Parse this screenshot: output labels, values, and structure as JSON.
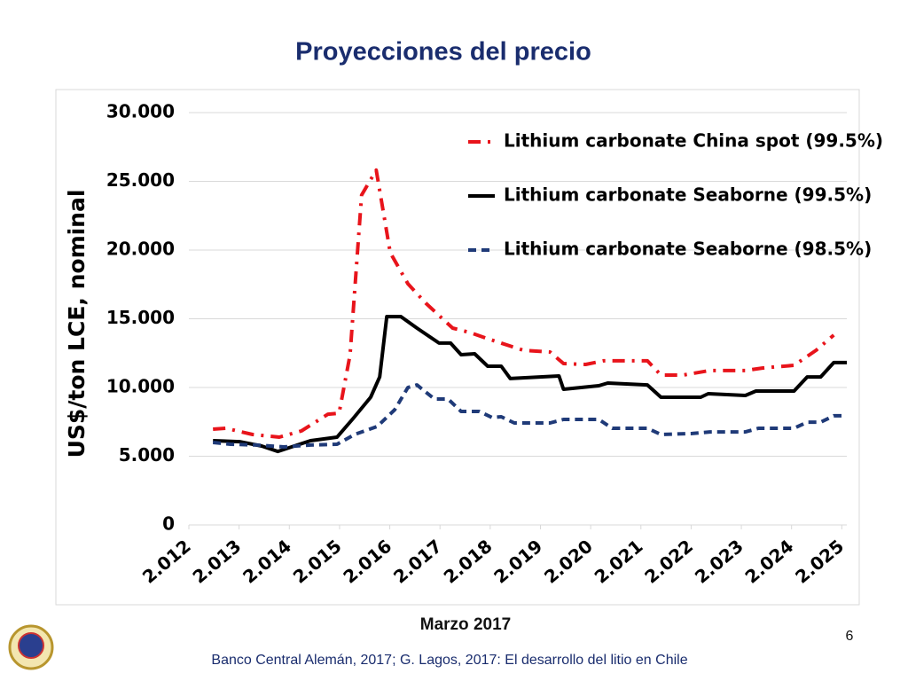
{
  "slide": {
    "title": "Proyecciones del precio",
    "date": "Marzo 2017",
    "source": "Banco Central Alemán, 2017; G. Lagos, 2017: El desarrollo del litio en Chile",
    "page": "6"
  },
  "chart_data": {
    "type": "line",
    "ylabel": "US$/ton LCE, nominal",
    "xlim": [
      2012,
      2025.1
    ],
    "xticks": [
      {
        "value": 2012,
        "label": "2.012"
      },
      {
        "value": 2013,
        "label": "2.013"
      },
      {
        "value": 2014,
        "label": "2.014"
      },
      {
        "value": 2015,
        "label": "2.015"
      },
      {
        "value": 2016,
        "label": "2.016"
      },
      {
        "value": 2017,
        "label": "2.017"
      },
      {
        "value": 2018,
        "label": "2.018"
      },
      {
        "value": 2019,
        "label": "2.019"
      },
      {
        "value": 2020,
        "label": "2.020"
      },
      {
        "value": 2021,
        "label": "2.021"
      },
      {
        "value": 2022,
        "label": "2.022"
      },
      {
        "value": 2023,
        "label": "2.023"
      },
      {
        "value": 2024,
        "label": "2.024"
      },
      {
        "value": 2025,
        "label": "2.025"
      }
    ],
    "ylim": [
      0,
      30000
    ],
    "yticks": [
      0,
      {
        "value": 5000,
        "label": "5.000"
      },
      {
        "value": 10000,
        "label": "10.000"
      },
      {
        "value": 15000,
        "label": "15.000"
      },
      {
        "value": 20000,
        "label": "20.000"
      },
      {
        "value": 25000,
        "label": "25.000"
      },
      {
        "value": 30000,
        "label": "30.000"
      }
    ],
    "grid": true,
    "legend": "upper right",
    "series": [
      {
        "name": "Lithium carbonate China spot (99.5%)",
        "color": "#e8141b",
        "line_style": "dashdot",
        "x": [
          2012.48,
          2012.74,
          2013.27,
          2013.8,
          2014.24,
          2014.77,
          2014.99,
          2015.21,
          2015.44,
          2015.73,
          2016.01,
          2016.36,
          2016.72,
          2017.25,
          2017.6,
          2017.95,
          2018.66,
          2019.19,
          2019.46,
          2019.9,
          2020.25,
          2021.13,
          2021.4,
          2021.84,
          2022.37,
          2023.08,
          2023.43,
          2024.05,
          2024.49,
          2024.84
        ],
        "values": [
          6970,
          7030,
          6580,
          6390,
          6840,
          8060,
          8130,
          12390,
          24000,
          25810,
          19810,
          17550,
          16130,
          14320,
          14000,
          13550,
          12710,
          12580,
          11740,
          11680,
          11940,
          11940,
          10900,
          10900,
          11230,
          11230,
          11420,
          11610,
          12710,
          13810
        ]
      },
      {
        "name": "Lithium carbonate Seaborne (99.5%)",
        "color": "#000000",
        "line_style": "solid",
        "x": [
          2012.48,
          2013.01,
          2013.45,
          2013.77,
          2014.16,
          2014.42,
          2014.95,
          2015.27,
          2015.62,
          2015.8,
          2015.94,
          2016.22,
          2016.54,
          2016.98,
          2017.21,
          2017.42,
          2017.69,
          2017.95,
          2018.22,
          2018.4,
          2019.37,
          2019.46,
          2020.16,
          2020.34,
          2021.13,
          2021.4,
          2022.19,
          2022.34,
          2023.08,
          2023.29,
          2024.05,
          2024.31,
          2024.58,
          2024.84,
          2025.1
        ],
        "values": [
          6130,
          6060,
          5740,
          5350,
          5810,
          6130,
          6390,
          7740,
          9290,
          10770,
          15160,
          15160,
          14320,
          13230,
          13230,
          12390,
          12450,
          11550,
          11550,
          10650,
          10840,
          9870,
          10130,
          10320,
          10190,
          9290,
          9290,
          9550,
          9420,
          9740,
          9740,
          10770,
          10770,
          11810,
          11810
        ]
      },
      {
        "name": "Lithium carbonate Seaborne (98.5%)",
        "color": "#1f3a78",
        "line_style": "dashed",
        "x": [
          2012.48,
          2012.83,
          2013.36,
          2013.89,
          2014.42,
          2014.95,
          2015.3,
          2015.75,
          2016.1,
          2016.36,
          2016.54,
          2016.89,
          2017.16,
          2017.42,
          2017.78,
          2018.04,
          2018.22,
          2018.48,
          2019.19,
          2019.46,
          2020.16,
          2020.43,
          2021.13,
          2021.4,
          2022.02,
          2022.37,
          2023.08,
          2023.34,
          2024.05,
          2024.31,
          2024.58,
          2024.84,
          2025.02
        ],
        "values": [
          6000,
          5870,
          5810,
          5680,
          5810,
          5870,
          6580,
          7160,
          8390,
          10000,
          10190,
          9160,
          9160,
          8260,
          8260,
          7810,
          7870,
          7420,
          7420,
          7680,
          7680,
          7030,
          7030,
          6580,
          6650,
          6770,
          6770,
          7030,
          7030,
          7480,
          7480,
          7940,
          7940
        ]
      }
    ]
  }
}
